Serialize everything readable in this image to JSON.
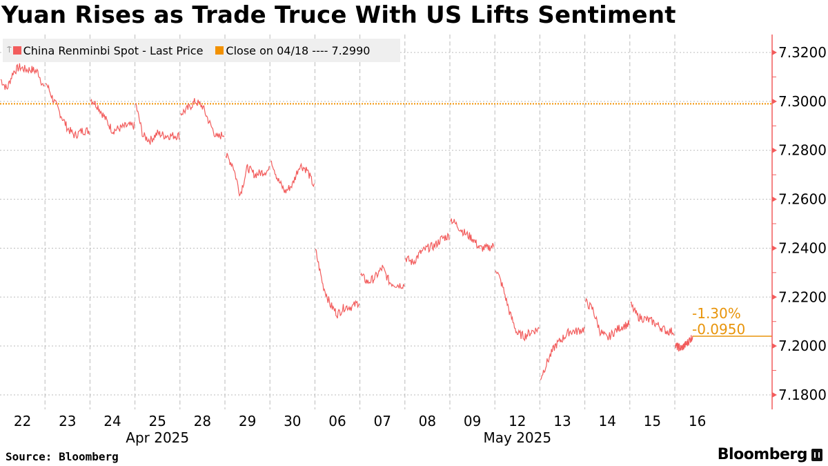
{
  "title": "Yuan Rises as Trade Truce With US Lifts Sentiment",
  "legend": [
    {
      "label": "China Renminbi Spot - Last Price",
      "color": "#f25c5c"
    },
    {
      "label": "Close on 04/18 ---- 7.2990",
      "color": "#f29100"
    }
  ],
  "source": "Source: Bloomberg",
  "brand": "Bloomberg",
  "chart_data": {
    "type": "line",
    "title": "Yuan Rises as Trade Truce With US Lifts Sentiment",
    "ylabel": "",
    "xlabel": "",
    "ylim": [
      7.175,
      7.327
    ],
    "yticks": [
      "7.1800",
      "7.2000",
      "7.2200",
      "7.2400",
      "7.2600",
      "7.2800",
      "7.3000",
      "7.3200"
    ],
    "ytick_values": [
      7.18,
      7.2,
      7.22,
      7.24,
      7.26,
      7.28,
      7.3,
      7.32
    ],
    "days": [
      "22",
      "23",
      "24",
      "25",
      "28",
      "29",
      "30",
      "06",
      "07",
      "08",
      "09",
      "12",
      "13",
      "14",
      "15",
      "16"
    ],
    "months": [
      {
        "label": "Apr 2025",
        "center_day": 3.5
      },
      {
        "label": "May 2025",
        "center_day": 11.5
      }
    ],
    "last_day_fraction": 0.38,
    "series": [
      {
        "name": "China Renminbi Spot - Last Price",
        "color": "#f25c5c",
        "values_by_day": [
          [
            7.309,
            7.305,
            7.312,
            7.314,
            7.313,
            7.313,
            7.312,
            7.305
          ],
          [
            7.308,
            7.301,
            7.295,
            7.289,
            7.286,
            7.288,
            7.288
          ],
          [
            7.301,
            7.298,
            7.293,
            7.288,
            7.289,
            7.29,
            7.29
          ],
          [
            7.299,
            7.286,
            7.284,
            7.287,
            7.286,
            7.286,
            7.286
          ],
          [
            7.295,
            7.297,
            7.3,
            7.298,
            7.291,
            7.285,
            7.287
          ],
          [
            7.278,
            7.274,
            7.262,
            7.273,
            7.27,
            7.271,
            7.272
          ],
          [
            7.277,
            7.268,
            7.263,
            7.266,
            7.274,
            7.272,
            7.265
          ],
          [
            7.239,
            7.225,
            7.217,
            7.213,
            7.216,
            7.216,
            7.218
          ],
          [
            7.229,
            7.226,
            7.228,
            7.232,
            7.226,
            7.225,
            7.225
          ],
          [
            7.236,
            7.234,
            7.238,
            7.24,
            7.241,
            7.244,
            7.245
          ],
          [
            7.252,
            7.249,
            7.246,
            7.244,
            7.24,
            7.24,
            7.241
          ],
          [
            7.232,
            7.224,
            7.213,
            7.205,
            7.204,
            7.206,
            7.207
          ],
          [
            7.187,
            7.194,
            7.2,
            7.203,
            7.206,
            7.206,
            7.207
          ],
          [
            7.218,
            7.215,
            7.206,
            7.203,
            7.206,
            7.208,
            7.209
          ],
          [
            7.217,
            7.212,
            7.211,
            7.21,
            7.208,
            7.206,
            7.206
          ],
          [
            7.2,
            7.199,
            7.201,
            7.204
          ]
        ]
      }
    ],
    "reference_line": {
      "label": "Close on 04/18",
      "value": 7.299,
      "color": "#f29100"
    },
    "last_value": 7.204,
    "annotations": {
      "change_pct": "-1.30%",
      "change_abs": "-0.0950",
      "color": "#e8940a"
    },
    "grid": true,
    "legend_position": "top-left"
  }
}
